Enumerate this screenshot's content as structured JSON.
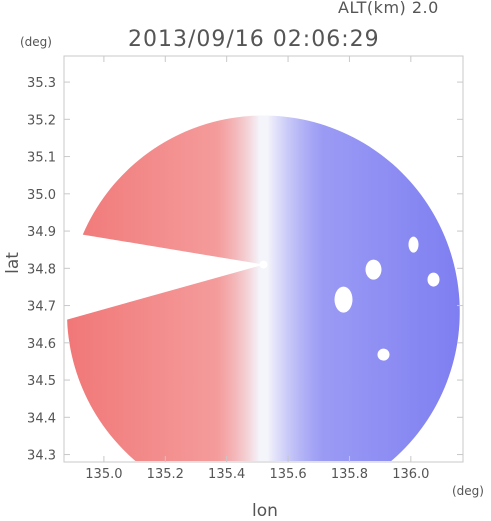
{
  "header": {
    "alt_label": "ALT(km) 2.0",
    "timestamp": "2013/09/16 02:06:29"
  },
  "chart_data": {
    "type": "heatmap",
    "title": "2013/09/16 02:06:29",
    "subtitle": "ALT(km) 2.0",
    "xlabel": "lon",
    "ylabel": "lat",
    "x_unit": "(deg)",
    "y_unit": "(deg)",
    "xlim": [
      134.87,
      136.17
    ],
    "ylim": [
      34.28,
      35.37
    ],
    "x_ticks": [
      135.0,
      135.2,
      135.4,
      135.6,
      135.8,
      136.0
    ],
    "x_tick_labels": [
      "135.0",
      "135.2",
      "135.4",
      "135.6",
      "135.8",
      "136.0"
    ],
    "y_ticks": [
      34.3,
      34.4,
      34.5,
      34.6,
      34.7,
      34.8,
      34.9,
      35.0,
      35.1,
      35.2,
      35.3
    ],
    "y_tick_labels": [
      "34.3",
      "34.4",
      "34.5",
      "34.6",
      "34.7",
      "34.8",
      "34.9",
      "35.0",
      "35.1",
      "35.2",
      "35.3"
    ],
    "radar_center": {
      "lon": 135.52,
      "lat": 34.81
    },
    "radar_radius_deg_lon": 0.64,
    "colors": {
      "positive": "#f07070",
      "negative": "#7070f0",
      "neutral": "#f4f4fb"
    },
    "grid": false,
    "legend": "none"
  }
}
